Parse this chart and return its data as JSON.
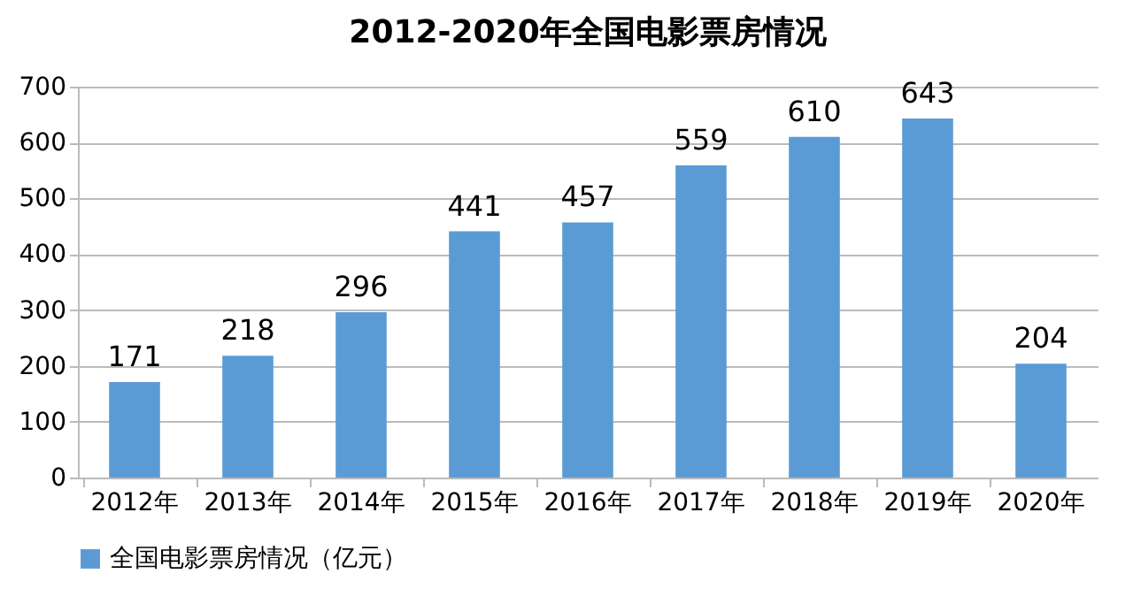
{
  "chart_data": {
    "type": "bar",
    "title": "2012-2020年全国电影票房情况",
    "categories": [
      "2012年",
      "2013年",
      "2014年",
      "2015年",
      "2016年",
      "2017年",
      "2018年",
      "2019年",
      "2020年"
    ],
    "series": [
      {
        "name": "全国电影票房情况（亿元）",
        "color": "#5b9bd5",
        "values": [
          171,
          218,
          296,
          441,
          457,
          559,
          610,
          643,
          204
        ]
      }
    ],
    "ylim": [
      0,
      700
    ],
    "yticks": [
      0,
      100,
      200,
      300,
      400,
      500,
      600,
      700
    ],
    "grid": "y",
    "legend": "bottom",
    "data_labels": true
  }
}
